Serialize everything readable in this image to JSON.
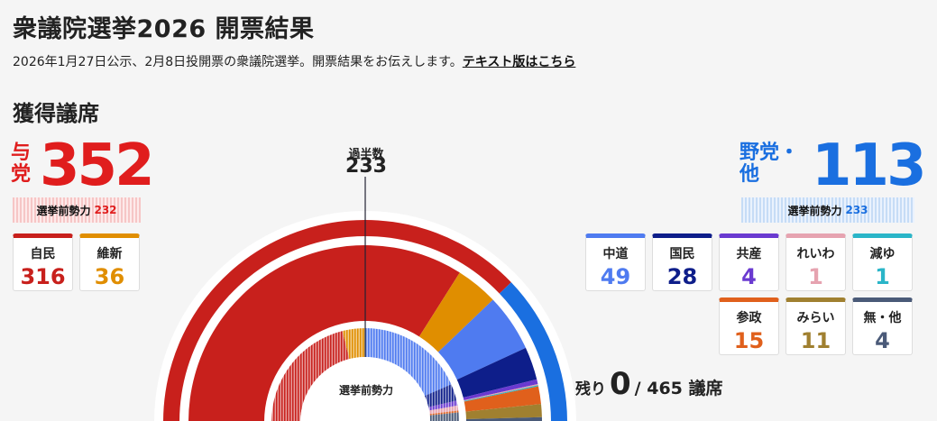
{
  "header": {
    "title": "衆議院選挙2026 開票結果",
    "subtitle": "2026年1月27日公示、2月8日投開票の衆議院選挙。開票結果をお伝えします。",
    "text_link": "テキスト版はこちら"
  },
  "section_title": "獲得議席",
  "ruling": {
    "label": "与党",
    "total": "352",
    "before_label": "選挙前勢力",
    "before_value": "232",
    "parties": [
      {
        "name": "自民",
        "seats": "316",
        "color": "#c8201c"
      },
      {
        "name": "維新",
        "seats": "36",
        "color": "#e08e00"
      }
    ]
  },
  "opposition": {
    "label": "野党・他",
    "total": "113",
    "before_label": "選挙前勢力",
    "before_value": "233",
    "parties": [
      {
        "name": "中道",
        "seats": "49",
        "color": "#4f7bf0"
      },
      {
        "name": "国民",
        "seats": "28",
        "color": "#0e1e8a"
      },
      {
        "name": "共産",
        "seats": "4",
        "color": "#6a3ad0"
      },
      {
        "name": "れいわ",
        "seats": "1",
        "color": "#e6a3b0"
      },
      {
        "name": "減ゆ",
        "seats": "1",
        "color": "#2ab5c8"
      },
      {
        "name": "参政",
        "seats": "15",
        "color": "#e0601c"
      },
      {
        "name": "みらい",
        "seats": "11",
        "color": "#a08030"
      },
      {
        "name": "無・他",
        "seats": "4",
        "color": "#4a5a78"
      }
    ]
  },
  "majority": {
    "label": "過半数",
    "value": "233"
  },
  "remaining": {
    "prefix": "残り",
    "value": "0",
    "suffix": "/ 465 議席"
  },
  "inner_label": "選挙前勢力",
  "chart_data": {
    "type": "pie",
    "total_seats": 465,
    "majority": 233,
    "outer_ring": {
      "categories": [
        "与党",
        "野党・他"
      ],
      "values": [
        352,
        113
      ],
      "colors": [
        "#c8201c",
        "#1a6fe0"
      ]
    },
    "current": {
      "categories": [
        "自民",
        "維新",
        "中道",
        "国民",
        "共産",
        "れいわ",
        "減ゆ",
        "参政",
        "みらい",
        "無・他"
      ],
      "values": [
        316,
        36,
        49,
        28,
        4,
        1,
        1,
        15,
        11,
        4
      ],
      "colors": [
        "#c8201c",
        "#e08e00",
        "#4f7bf0",
        "#0e1e8a",
        "#6a3ad0",
        "#e6a3b0",
        "#2ab5c8",
        "#e0601c",
        "#a08030",
        "#4a5a78"
      ]
    },
    "before": {
      "values": [
        196,
        36,
        172,
        27,
        8,
        8,
        0,
        3,
        0,
        15
      ],
      "colors": [
        "#c8201c",
        "#e08e00",
        "#4f7bf0",
        "#0e1e8a",
        "#6a3ad0",
        "#e6a3b0",
        "#2ab5c8",
        "#e0601c",
        "#a08030",
        "#4a5a78"
      ]
    }
  }
}
